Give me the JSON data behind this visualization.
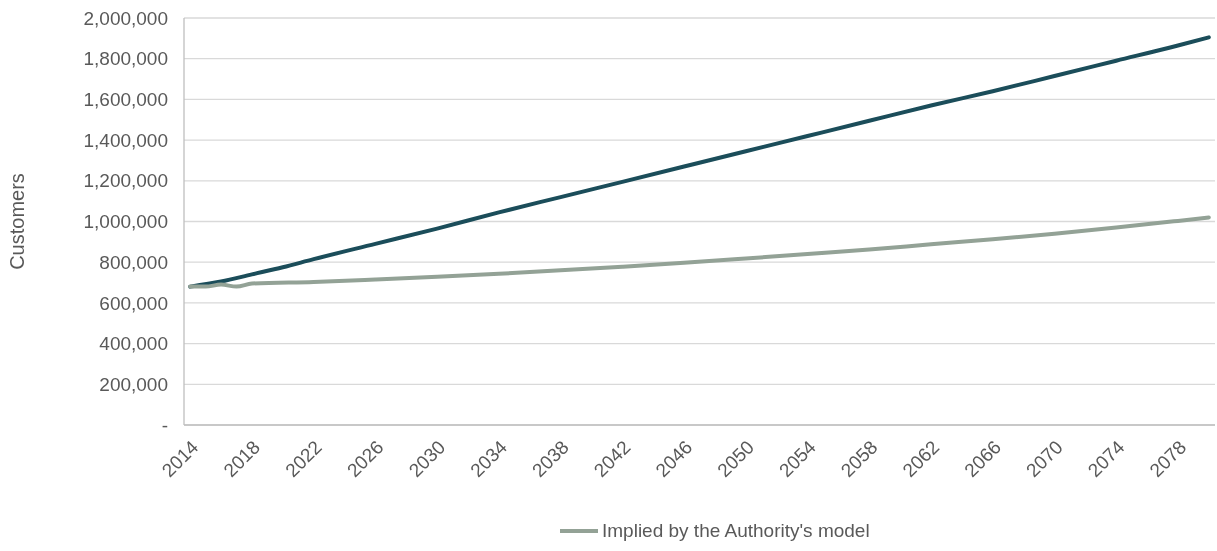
{
  "chart_data": {
    "type": "line",
    "ylabel": "Customers",
    "xlim": [
      2013.6,
      2080.4
    ],
    "ylim": [
      0,
      2000000
    ],
    "xticks": [
      2014,
      2018,
      2022,
      2026,
      2030,
      2034,
      2038,
      2042,
      2046,
      2050,
      2054,
      2058,
      2062,
      2066,
      2070,
      2074,
      2078
    ],
    "yticks": [
      {
        "value": 0,
        "label": "-"
      },
      {
        "value": 200000,
        "label": "200,000"
      },
      {
        "value": 400000,
        "label": "400,000"
      },
      {
        "value": 600000,
        "label": "600,000"
      },
      {
        "value": 800000,
        "label": "800,000"
      },
      {
        "value": 1000000,
        "label": "1,000,000"
      },
      {
        "value": 1200000,
        "label": "1,200,000"
      },
      {
        "value": 1400000,
        "label": "1,400,000"
      },
      {
        "value": 1600000,
        "label": "1,600,000"
      },
      {
        "value": 1800000,
        "label": "1,800,000"
      },
      {
        "value": 2000000,
        "label": "2,000,000"
      }
    ],
    "grid": "y",
    "legend": "bottom",
    "line_style": "solid",
    "series": [
      {
        "color": "#1b4d5a",
        "x": [
          2014,
          2016,
          2018,
          2020,
          2022,
          2026,
          2030,
          2034,
          2038,
          2042,
          2046,
          2050,
          2054,
          2058,
          2062,
          2066,
          2070,
          2074,
          2078,
          2080
        ],
        "values": [
          680000,
          705000,
          740000,
          775000,
          815000,
          890000,
          965000,
          1045000,
          1120000,
          1195000,
          1270000,
          1345000,
          1420000,
          1495000,
          1570000,
          1640000,
          1715000,
          1790000,
          1865000,
          1905000
        ]
      },
      {
        "name": "Implied by the Authority's model",
        "color": "#93a296",
        "x": [
          2014,
          2015,
          2016,
          2017,
          2018,
          2022,
          2026,
          2030,
          2034,
          2038,
          2042,
          2046,
          2050,
          2054,
          2058,
          2062,
          2066,
          2070,
          2074,
          2078,
          2080
        ],
        "values": [
          680000,
          680000,
          690000,
          680000,
          695000,
          703000,
          715000,
          728000,
          743000,
          760000,
          778000,
          797000,
          818000,
          840000,
          862000,
          888000,
          913000,
          940000,
          970000,
          1003000,
          1020000
        ]
      }
    ]
  }
}
